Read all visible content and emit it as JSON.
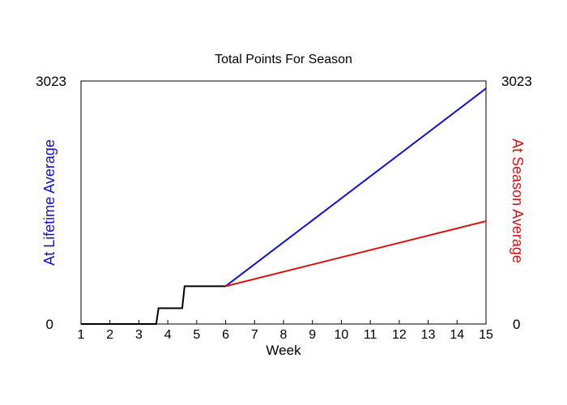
{
  "chart_data": {
    "type": "line",
    "title": "Total Points For Season",
    "xlabel": "Week",
    "ylabel_left": "At Lifetime Average",
    "ylabel_right": "At Season Average",
    "xlim": [
      1,
      15
    ],
    "ylim": [
      0,
      3023
    ],
    "x_ticks": [
      1,
      2,
      3,
      4,
      5,
      6,
      7,
      8,
      9,
      10,
      11,
      12,
      13,
      14,
      15
    ],
    "y_tick_labels": [
      "0",
      "3023"
    ],
    "grid": false,
    "colors": {
      "actual": "#000000",
      "lifetime": "#1111cc",
      "season": "#dd1111"
    },
    "series": [
      {
        "key": "actual",
        "x": [
          1,
          3.6,
          3.68,
          4.5,
          4.58,
          6
        ],
        "y": [
          0,
          0,
          196,
          196,
          470,
          470
        ]
      },
      {
        "key": "lifetime",
        "x": [
          6,
          15
        ],
        "y": [
          470,
          2930
        ]
      },
      {
        "key": "season",
        "x": [
          6,
          15
        ],
        "y": [
          470,
          1280
        ]
      }
    ]
  }
}
